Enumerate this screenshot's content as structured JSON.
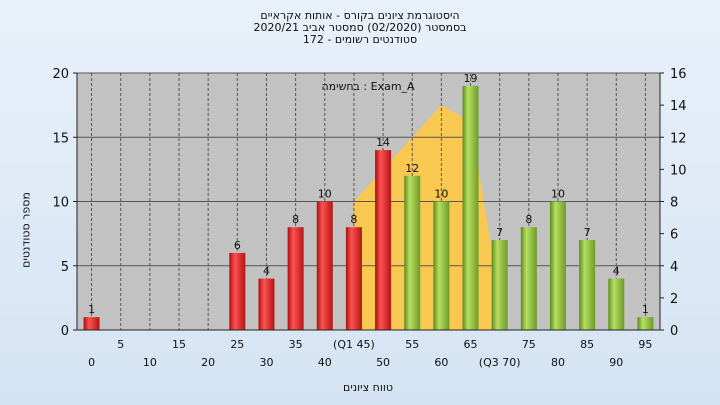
{
  "chart_data": {
    "type": "bar",
    "title_lines": [
      "היסטוגרמת ציונים בקורס - אותות אקראיים",
      "2020/21 בסמסטר (02/2020) סמסטר אביב",
      "172 - סטודנטים רשומים"
    ],
    "list_label": "בחשימה : Exam_A",
    "ylabel": "מספר סטודנטים",
    "xlabel": "טווח ציונים",
    "ylim": [
      0,
      20
    ],
    "yticks": [
      0,
      5,
      10,
      15,
      20
    ],
    "y2lim": [
      0,
      16
    ],
    "y2ticks": [
      0,
      2,
      4,
      6,
      8,
      10,
      12,
      14,
      16
    ],
    "x_tick_labels": [
      {
        "label": "0",
        "row": 2
      },
      {
        "label": "5",
        "row": 1
      },
      {
        "label": "10",
        "row": 2
      },
      {
        "label": "15",
        "row": 1
      },
      {
        "label": "20",
        "row": 2
      },
      {
        "label": "25",
        "row": 1
      },
      {
        "label": "30",
        "row": 2
      },
      {
        "label": "35",
        "row": 1
      },
      {
        "label": "40",
        "row": 2
      },
      {
        "label": "(Q1 45)",
        "row": 1
      },
      {
        "label": "50",
        "row": 2
      },
      {
        "label": "55",
        "row": 1
      },
      {
        "label": "60",
        "row": 2
      },
      {
        "label": "65",
        "row": 1
      },
      {
        "label": "(Q3 70)",
        "row": 2
      },
      {
        "label": "75",
        "row": 1
      },
      {
        "label": "80",
        "row": 2
      },
      {
        "label": "85",
        "row": 1
      },
      {
        "label": "90",
        "row": 2
      },
      {
        "label": "95",
        "row": 1
      }
    ],
    "categories": [
      "0",
      "5",
      "10",
      "15",
      "20",
      "25",
      "30",
      "35",
      "40",
      "45",
      "50",
      "55",
      "60",
      "65",
      "70",
      "75",
      "80",
      "85",
      "90",
      "95"
    ],
    "values": [
      1,
      0,
      0,
      0,
      0,
      6,
      4,
      8,
      10,
      8,
      14,
      12,
      10,
      19,
      7,
      8,
      10,
      7,
      4,
      1
    ],
    "bar_groups": [
      "red",
      "red",
      "red",
      "red",
      "red",
      "red",
      "red",
      "red",
      "red",
      "red",
      "red",
      "green",
      "green",
      "green",
      "green",
      "green",
      "green",
      "green",
      "green",
      "green"
    ],
    "area_overlay": {
      "x": [
        "45",
        "55",
        "60",
        "65",
        "70"
      ],
      "y2": [
        8,
        12,
        14,
        13,
        2
      ]
    },
    "colors": {
      "red": "#dd2222",
      "green": "#88bb33",
      "area": "#ffc944",
      "plot_bg": "#c2c2c2",
      "grid": "#555555"
    },
    "grid": true
  }
}
